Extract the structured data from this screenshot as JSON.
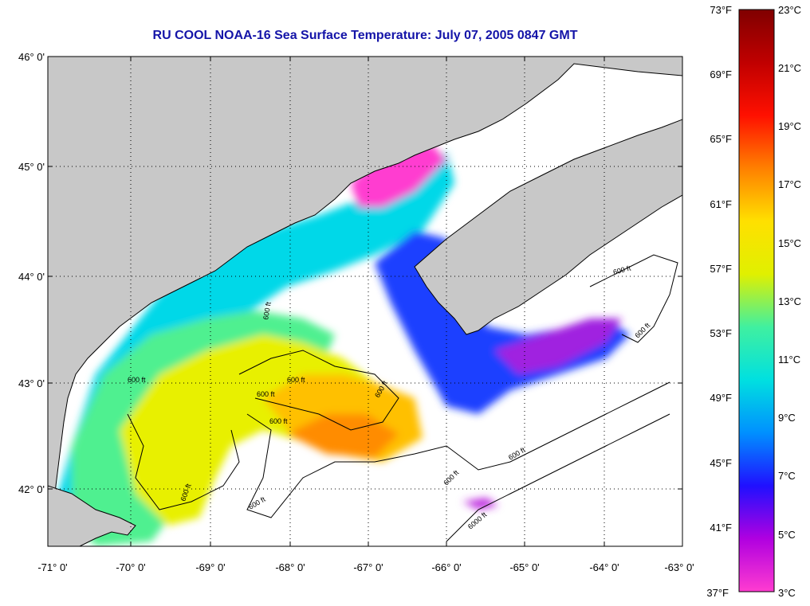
{
  "title": "RU COOL  NOAA-16  Sea Surface Temperature:  July 07, 2005 0847 GMT",
  "map": {
    "lat_labels": [
      "46° 0'",
      "45° 0'",
      "44° 0'",
      "43° 0'",
      "42° 0'"
    ],
    "lon_labels": [
      "-71° 0'",
      "-70° 0'",
      "-69° 0'",
      "-68° 0'",
      "-67° 0'",
      "-66° 0'",
      "-65° 0'",
      "-64° 0'",
      "-63° 0'"
    ],
    "contour_labels": [
      "600 ft",
      "600 ft",
      "600 ft",
      "600 ft",
      "600 ft",
      "600 ft",
      "600 ft",
      "600 ft",
      "600 ft",
      "600 ft",
      "600 ft",
      "600 ft",
      "6000 ft"
    ],
    "colors": {
      "land": "#c8c8c8",
      "no_data": "#ffffff",
      "grid": "#000000"
    }
  },
  "colorbar": {
    "fahrenheit_labels": [
      "73°F",
      "69°F",
      "65°F",
      "61°F",
      "57°F",
      "53°F",
      "49°F",
      "45°F",
      "41°F",
      "37°F"
    ],
    "celsius_labels": [
      "23°C",
      "21°C",
      "19°C",
      "17°C",
      "15°C",
      "13°C",
      "11°C",
      "9°C",
      "7°C",
      "5°C",
      "3°C"
    ],
    "stops": [
      "#ff3cd0",
      "#b000e0",
      "#2010ff",
      "#0090ff",
      "#00e0e0",
      "#40f0a0",
      "#e0f000",
      "#ffe000",
      "#ff8000",
      "#ff1000",
      "#c00000",
      "#800000"
    ]
  }
}
